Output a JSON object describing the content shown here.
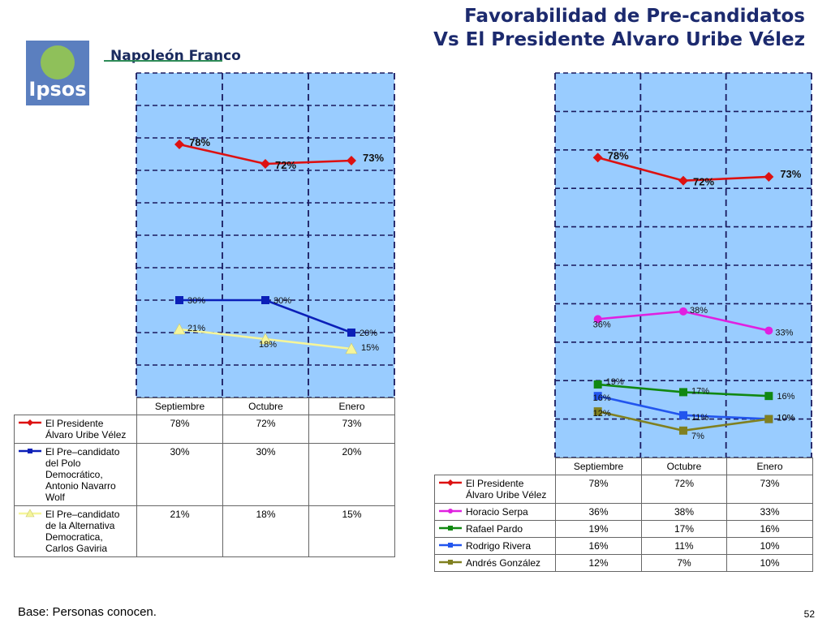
{
  "title": {
    "line1": "Favorabilidad de Pre-candidatos",
    "line2": "Vs El Presidente Alvaro Uribe Vélez"
  },
  "logo": {
    "text": "Ipsos",
    "partner": "Napoleón Franco"
  },
  "footer": {
    "base": "Base: Personas conocen.",
    "page": "52"
  },
  "colors": {
    "plot_bg": "#99ccff",
    "grid": "#1a1a5e"
  },
  "chart_data": [
    {
      "type": "line",
      "categories": [
        "Septiembre",
        "Octubre",
        "Enero"
      ],
      "ylim": [
        0,
        100
      ],
      "series": [
        {
          "name": "El Presidente Álvaro Uribe Vélez",
          "label_lines": [
            "El Presidente",
            "Álvaro Uribe Vélez"
          ],
          "values": [
            78,
            72,
            73
          ],
          "labels": [
            "78%",
            "72%",
            "73%"
          ],
          "color": "#dd1111",
          "marker": "diamond",
          "bold": true
        },
        {
          "name": "El Pre–candidato del Polo Democrático, Antonio Navarro Wolf",
          "label_lines": [
            "El Pre–candidato",
            "del Polo",
            "Democrático,",
            "Antonio Navarro",
            "Wolf"
          ],
          "values": [
            30,
            30,
            20
          ],
          "labels": [
            "30%",
            "30%",
            "20%"
          ],
          "color": "#0b1fb8",
          "marker": "square",
          "bold": false
        },
        {
          "name": "El Pre–candidato de la Alternativa Democratica, Carlos Gaviria",
          "label_lines": [
            "El Pre–candidato",
            "de la Alternativa",
            "Democratica,",
            "Carlos Gaviria"
          ],
          "values": [
            21,
            18,
            15
          ],
          "labels": [
            "21%",
            "18%",
            "15%"
          ],
          "color": "#f5f59a",
          "marker": "triangle",
          "bold": false
        }
      ]
    },
    {
      "type": "line",
      "categories": [
        "Septiembre",
        "Octubre",
        "Enero"
      ],
      "ylim": [
        0,
        100
      ],
      "series": [
        {
          "name": "El Presidente Álvaro Uribe Vélez",
          "label_lines": [
            "El Presidente",
            "Álvaro Uribe Vélez"
          ],
          "values": [
            78,
            72,
            73
          ],
          "labels": [
            "78%",
            "72%",
            "73%"
          ],
          "color": "#dd1111",
          "marker": "diamond",
          "bold": true
        },
        {
          "name": "Horacio Serpa",
          "label_lines": [
            "Horacio Serpa"
          ],
          "values": [
            36,
            38,
            33
          ],
          "labels": [
            "36%",
            "38%",
            "33%"
          ],
          "color": "#e020e0",
          "marker": "circle",
          "bold": false
        },
        {
          "name": "Rafael Pardo",
          "label_lines": [
            "Rafael Pardo"
          ],
          "values": [
            19,
            17,
            16
          ],
          "labels": [
            "19%",
            "17%",
            "16%"
          ],
          "color": "#118811",
          "marker": "square",
          "bold": false
        },
        {
          "name": "Rodrigo Rivera",
          "label_lines": [
            "Rodrigo Rivera"
          ],
          "values": [
            16,
            11,
            10
          ],
          "labels": [
            "16%",
            "11%",
            "10%"
          ],
          "color": "#2255ee",
          "marker": "square",
          "bold": false
        },
        {
          "name": "Andrés González",
          "label_lines": [
            "Andrés González"
          ],
          "values": [
            12,
            7,
            10
          ],
          "labels": [
            "12%",
            "7%",
            "10%"
          ],
          "color": "#808020",
          "marker": "square",
          "bold": false
        }
      ]
    }
  ]
}
